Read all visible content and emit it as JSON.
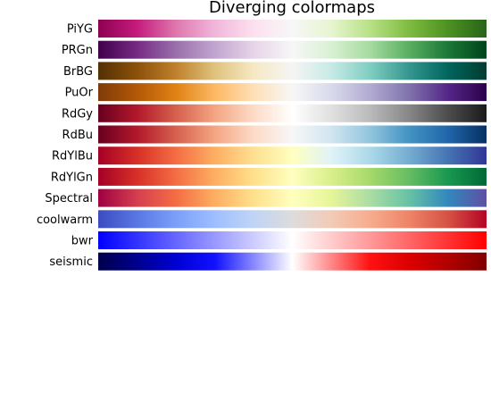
{
  "chart_data": {
    "type": "colormap-swatches",
    "title": "Diverging colormaps",
    "colormaps": [
      {
        "name": "PiYG",
        "stops": [
          "#8e0152",
          "#c51b7d",
          "#de77ae",
          "#f1b6da",
          "#fde0ef",
          "#f7f7f7",
          "#e6f5d0",
          "#b8e186",
          "#7fbc41",
          "#4d9221",
          "#276419"
        ]
      },
      {
        "name": "PRGn",
        "stops": [
          "#40004b",
          "#762a83",
          "#9970ab",
          "#c2a5cf",
          "#e7d4e8",
          "#f7f7f7",
          "#d9f0d3",
          "#a6dba0",
          "#5aae61",
          "#1b7837",
          "#00441b"
        ]
      },
      {
        "name": "BrBG",
        "stops": [
          "#543005",
          "#8c510a",
          "#bf812d",
          "#dfc27d",
          "#f6e8c3",
          "#f5f5f5",
          "#c7eae5",
          "#80cdc1",
          "#35978f",
          "#01665e",
          "#003c30"
        ]
      },
      {
        "name": "PuOr",
        "stops": [
          "#7f3b08",
          "#b35806",
          "#e08214",
          "#fdb863",
          "#fee0b6",
          "#f7f7f7",
          "#d8daeb",
          "#b2abd2",
          "#8073ac",
          "#542788",
          "#2d004b"
        ]
      },
      {
        "name": "RdGy",
        "stops": [
          "#67001f",
          "#b2182b",
          "#d6604d",
          "#f4a582",
          "#fddbc7",
          "#ffffff",
          "#e0e0e0",
          "#bababa",
          "#878787",
          "#4d4d4d",
          "#1a1a1a"
        ]
      },
      {
        "name": "RdBu",
        "stops": [
          "#67001f",
          "#b2182b",
          "#d6604d",
          "#f4a582",
          "#fddbc7",
          "#f7f7f7",
          "#d1e5f0",
          "#92c5de",
          "#4393c3",
          "#2166ac",
          "#053061"
        ]
      },
      {
        "name": "RdYlBu",
        "stops": [
          "#a50026",
          "#d73027",
          "#f46d43",
          "#fdae61",
          "#fee090",
          "#ffffbf",
          "#e0f3f8",
          "#abd9e9",
          "#74add1",
          "#4575b4",
          "#313695"
        ]
      },
      {
        "name": "RdYlGn",
        "stops": [
          "#a50026",
          "#d73027",
          "#f46d43",
          "#fdae61",
          "#fee08b",
          "#ffffbf",
          "#d9ef8b",
          "#a6d96a",
          "#66bd63",
          "#1a9850",
          "#006837"
        ]
      },
      {
        "name": "Spectral",
        "stops": [
          "#9e0142",
          "#d53e4f",
          "#f46d43",
          "#fdae61",
          "#fee08b",
          "#ffffbf",
          "#e6f598",
          "#abdda4",
          "#66c2a5",
          "#3288bd",
          "#5e4fa2"
        ]
      },
      {
        "name": "coolwarm",
        "stops": [
          "#3b4cc0",
          "#5977e3",
          "#7b9ff9",
          "#9ebeff",
          "#c0d4f5",
          "#dddcdc",
          "#f2cbb7",
          "#f7ac8e",
          "#ee8468",
          "#d65244",
          "#b40426"
        ]
      },
      {
        "name": "bwr",
        "stops": [
          "#0000ff",
          "#3333ff",
          "#6666ff",
          "#9999ff",
          "#ccccff",
          "#ffffff",
          "#ffcccc",
          "#ff9999",
          "#ff6666",
          "#ff3333",
          "#ff0000"
        ]
      },
      {
        "name": "seismic",
        "stops": [
          "#00004c",
          "#00008f",
          "#0000d3",
          "#1111ff",
          "#8888ff",
          "#ffffff",
          "#ff8888",
          "#ff1111",
          "#dc0000",
          "#b20000",
          "#800000"
        ]
      }
    ],
    "grid": false,
    "legend": "none"
  }
}
